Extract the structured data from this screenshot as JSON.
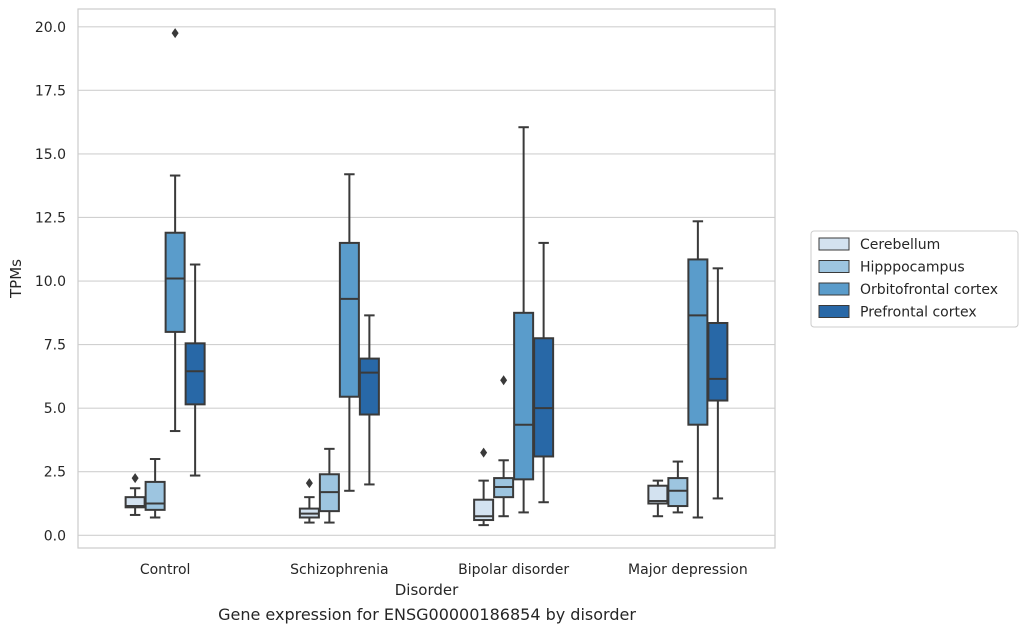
{
  "caption": "Gene expression for ENSG00000186854 by disorder",
  "chart_data": {
    "type": "boxplot",
    "xlabel": "Disorder",
    "ylabel": "TPMs",
    "ylim": [
      -0.5,
      20.7
    ],
    "yticks": [
      0.0,
      2.5,
      5.0,
      7.5,
      10.0,
      12.5,
      15.0,
      17.5,
      20.0
    ],
    "ytick_labels": [
      "0.0",
      "2.5",
      "5.0",
      "7.5",
      "10.0",
      "12.5",
      "15.0",
      "17.5",
      "20.0"
    ],
    "grid": "horizontal",
    "legend_position": "right",
    "categories": [
      "Control",
      "Schizophrenia",
      "Bipolar disorder",
      "Major depression"
    ],
    "series": [
      {
        "name": "Cerebellum",
        "color": "#d3e2f0",
        "boxes": [
          {
            "whisker_low": 0.8,
            "q1": 1.1,
            "median": 1.15,
            "q3": 1.5,
            "whisker_high": 1.85,
            "outliers": [
              2.25
            ]
          },
          {
            "whisker_low": 0.5,
            "q1": 0.7,
            "median": 0.85,
            "q3": 1.05,
            "whisker_high": 1.5,
            "outliers": [
              2.05
            ]
          },
          {
            "whisker_low": 0.4,
            "q1": 0.6,
            "median": 0.75,
            "q3": 1.4,
            "whisker_high": 2.15,
            "outliers": [
              3.25
            ]
          },
          {
            "whisker_low": 0.75,
            "q1": 1.25,
            "median": 1.35,
            "q3": 1.95,
            "whisker_high": 2.15,
            "outliers": []
          }
        ]
      },
      {
        "name": "Hipppocampus",
        "color": "#9dc5e0",
        "boxes": [
          {
            "whisker_low": 0.7,
            "q1": 1.0,
            "median": 1.25,
            "q3": 2.1,
            "whisker_high": 3.0,
            "outliers": []
          },
          {
            "whisker_low": 0.5,
            "q1": 0.95,
            "median": 1.7,
            "q3": 2.4,
            "whisker_high": 3.4,
            "outliers": []
          },
          {
            "whisker_low": 0.75,
            "q1": 1.5,
            "median": 1.9,
            "q3": 2.25,
            "whisker_high": 2.95,
            "outliers": [
              6.1
            ]
          },
          {
            "whisker_low": 0.9,
            "q1": 1.15,
            "median": 1.75,
            "q3": 2.25,
            "whisker_high": 2.9,
            "outliers": []
          }
        ]
      },
      {
        "name": "Orbitofrontal cortex",
        "color": "#5a9ccb",
        "boxes": [
          {
            "whisker_low": 4.1,
            "q1": 8.0,
            "median": 10.1,
            "q3": 11.9,
            "whisker_high": 14.15,
            "outliers": [
              19.75
            ]
          },
          {
            "whisker_low": 1.75,
            "q1": 5.45,
            "median": 9.3,
            "q3": 11.5,
            "whisker_high": 14.2,
            "outliers": []
          },
          {
            "whisker_low": 0.9,
            "q1": 2.2,
            "median": 4.35,
            "q3": 8.75,
            "whisker_high": 16.05,
            "outliers": []
          },
          {
            "whisker_low": 0.7,
            "q1": 4.35,
            "median": 8.65,
            "q3": 10.85,
            "whisker_high": 12.35,
            "outliers": []
          }
        ]
      },
      {
        "name": "Prefrontal cortex",
        "color": "#2868a7",
        "boxes": [
          {
            "whisker_low": 2.35,
            "q1": 5.15,
            "median": 6.45,
            "q3": 7.55,
            "whisker_high": 10.65,
            "outliers": []
          },
          {
            "whisker_low": 2.0,
            "q1": 4.75,
            "median": 6.4,
            "q3": 6.95,
            "whisker_high": 8.65,
            "outliers": []
          },
          {
            "whisker_low": 1.3,
            "q1": 3.1,
            "median": 5.0,
            "q3": 7.75,
            "whisker_high": 11.5,
            "outliers": []
          },
          {
            "whisker_low": 1.45,
            "q1": 5.3,
            "median": 6.15,
            "q3": 8.35,
            "whisker_high": 10.5,
            "outliers": []
          }
        ]
      }
    ]
  }
}
